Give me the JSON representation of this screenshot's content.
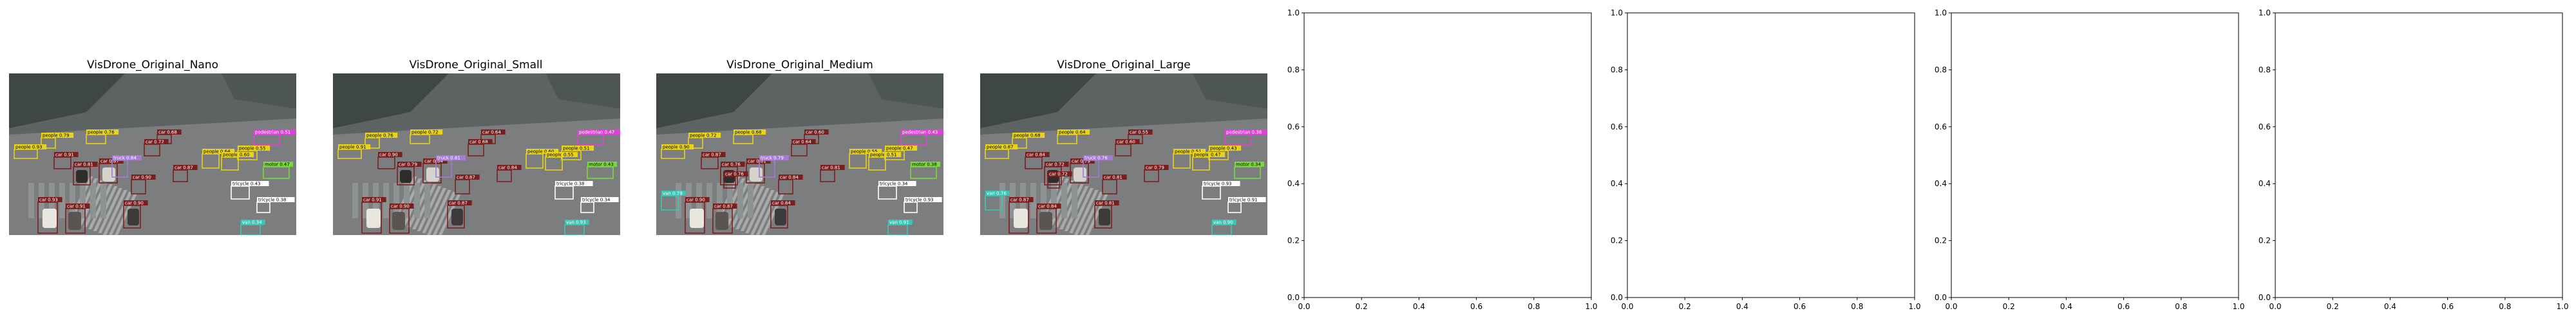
{
  "panels": [
    {
      "title": "VisDrone_Original_Nano"
    },
    {
      "title": "VisDrone_Original_Small"
    },
    {
      "title": "VisDrone_Original_Medium"
    },
    {
      "title": "VisDrone_Original_Large"
    }
  ],
  "detection_labels": {
    "car": "car",
    "van": "van",
    "truck": "truck",
    "people": "people",
    "pedestrian": "pedestrian",
    "motor": "motor",
    "scores": [
      "0.93",
      "0.91",
      "0.90",
      "0.87",
      "0.84",
      "0.81",
      "0.79",
      "0.76",
      "0.72",
      "0.68",
      "0.64",
      "0.60",
      "0.55",
      "0.51",
      "0.47",
      "0.43",
      "0.38",
      "0.34"
    ]
  },
  "colors": {
    "car": "#7a1f1f",
    "van": "#3cc6b5",
    "truck": "#a77ad6",
    "people": "#e8d21a",
    "pedestrian": "#e041d8",
    "motor": "#7ad93a",
    "tricycle": "#ffffff"
  },
  "chart_data": [
    {
      "type": "image",
      "title": "VisDrone_Original_Nano"
    },
    {
      "type": "image",
      "title": "VisDrone_Original_Small"
    },
    {
      "type": "image",
      "title": "VisDrone_Original_Medium"
    },
    {
      "type": "image",
      "title": "VisDrone_Original_Large"
    },
    {
      "type": "empty",
      "xlim": [
        0,
        1
      ],
      "ylim": [
        0,
        1
      ],
      "xticks": [
        "0.0",
        "0.2",
        "0.4",
        "0.6",
        "0.8",
        "1.0"
      ],
      "yticks": [
        "0.0",
        "0.2",
        "0.4",
        "0.6",
        "0.8",
        "1.0"
      ]
    },
    {
      "type": "empty",
      "xlim": [
        0,
        1
      ],
      "ylim": [
        0,
        1
      ],
      "xticks": [
        "0.0",
        "0.2",
        "0.4",
        "0.6",
        "0.8",
        "1.0"
      ],
      "yticks": [
        "0.0",
        "0.2",
        "0.4",
        "0.6",
        "0.8",
        "1.0"
      ]
    },
    {
      "type": "empty",
      "xlim": [
        0,
        1
      ],
      "ylim": [
        0,
        1
      ],
      "xticks": [
        "0.0",
        "0.2",
        "0.4",
        "0.6",
        "0.8",
        "1.0"
      ],
      "yticks": [
        "0.0",
        "0.2",
        "0.4",
        "0.6",
        "0.8",
        "1.0"
      ]
    },
    {
      "type": "empty",
      "xlim": [
        0,
        1
      ],
      "ylim": [
        0,
        1
      ],
      "xticks": [
        "0.0",
        "0.2",
        "0.4",
        "0.6",
        "0.8",
        "1.0"
      ],
      "yticks": [
        "0.0",
        "0.2",
        "0.4",
        "0.6",
        "0.8",
        "1.0"
      ]
    }
  ]
}
